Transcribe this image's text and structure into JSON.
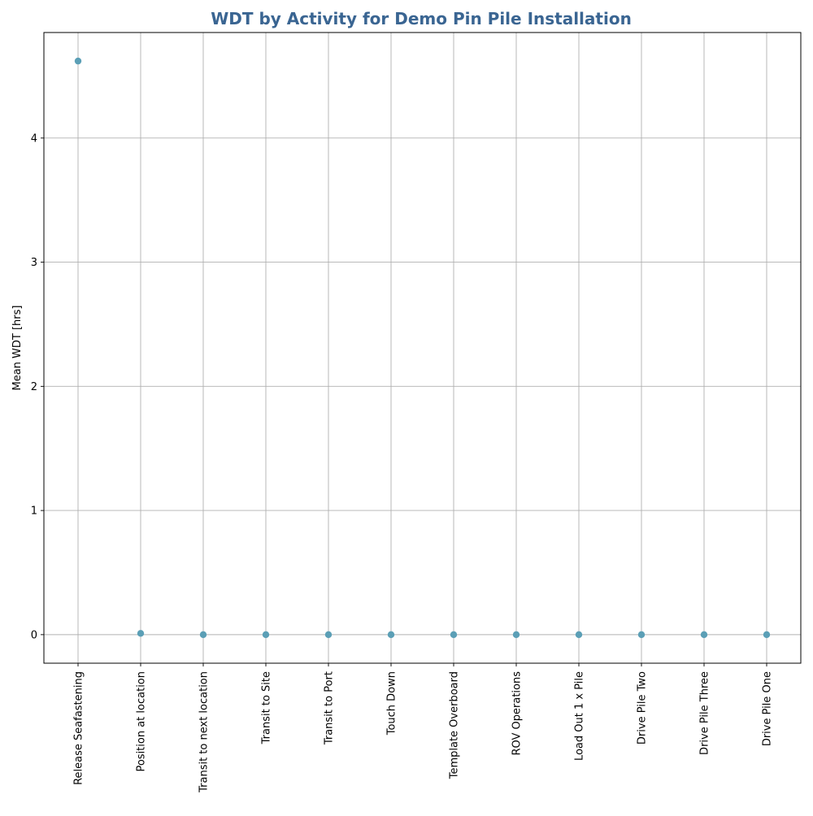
{
  "chart_data": {
    "type": "scatter",
    "title": "WDT by Activity for Demo Pin Pile Installation",
    "xlabel": "",
    "ylabel": "Mean WDT [hrs]",
    "categories": [
      "Release Seafastening",
      "Position at location",
      "Transit to next location",
      "Transit to Site",
      "Transit to Port",
      "Touch Down",
      "Template Overboard",
      "ROV Operations",
      "Load Out 1 x Pile",
      "Drive Pile Two",
      "Drive Pile Three",
      "Drive Pile One"
    ],
    "values": [
      4.62,
      0.01,
      0,
      0,
      0,
      0,
      0,
      0,
      0,
      0,
      0,
      0
    ],
    "ylim": [
      -0.23,
      4.85
    ],
    "yticks": [
      0,
      1,
      2,
      3,
      4
    ],
    "grid": true,
    "colors": {
      "marker": "#5b9fb6",
      "title": "#3a6592",
      "grid": "#b0b0b0"
    }
  }
}
